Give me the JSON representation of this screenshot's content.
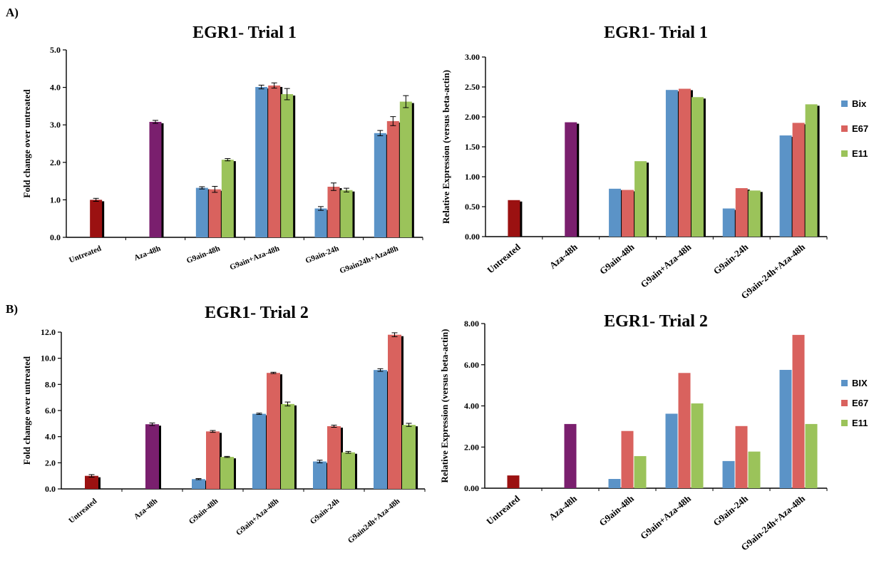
{
  "panels": {
    "a": "A)",
    "b": "B)"
  },
  "categories": [
    "Untreated",
    "Aza-48h",
    "G9ain-48h",
    "G9ain+Aza-48h",
    "G9ain-24h",
    "G9ain24h+Aza48h"
  ],
  "categories_alt": [
    "Untreated",
    "Aza-48h",
    "G9ain-48h",
    "G9ain+Aza-48h",
    "G9ain-24h",
    "G9ain-24h+Aza-48h"
  ],
  "colors": {
    "untreated": "#9b1111",
    "aza": "#7a1f6e",
    "blue": "#5b93c7",
    "red": "#d9625e",
    "green": "#9bc35a"
  },
  "chart_data": [
    {
      "id": "a_left",
      "type": "bar",
      "title": "EGR1- Trial 1",
      "ylabel": "Fold change over untreated",
      "ylim": [
        0,
        5.0
      ],
      "yticks": [
        "0.0",
        "1.0",
        "2.0",
        "3.0",
        "4.0",
        "5.0"
      ],
      "categories": [
        "Untreated",
        "Aza-48h",
        "G9ain-48h",
        "G9ain+Aza-48h",
        "G9ain-24h",
        "G9ain24h+Aza48h"
      ],
      "single": [
        1.0,
        3.08
      ],
      "series": [
        {
          "color": "blue",
          "values": [
            null,
            null,
            1.32,
            4.01,
            0.77,
            2.78
          ],
          "errors": [
            null,
            null,
            0.03,
            0.05,
            0.05,
            0.07
          ]
        },
        {
          "color": "red",
          "values": [
            null,
            null,
            1.28,
            4.05,
            1.35,
            3.1
          ],
          "errors": [
            null,
            null,
            0.08,
            0.07,
            0.1,
            0.12
          ]
        },
        {
          "color": "green",
          "values": [
            null,
            null,
            2.07,
            3.82,
            1.26,
            3.62
          ],
          "errors": [
            null,
            null,
            0.03,
            0.15,
            0.05,
            0.16
          ]
        }
      ],
      "error_bars": true,
      "shadow": true
    },
    {
      "id": "a_right",
      "type": "bar",
      "title": "EGR1- Trial 1",
      "ylabel": "Relative Expression (versus beta-actin)",
      "ylim": [
        0,
        3.0
      ],
      "yticks": [
        "0.00",
        "0.50",
        "1.00",
        "1.50",
        "2.00",
        "2.50",
        "3.00"
      ],
      "categories": [
        "Untreated",
        "Aza-48h",
        "G9ain-48h",
        "G9ain+Aza-48h",
        "G9ain-24h",
        "G9ain-24h+Aza-48h"
      ],
      "single": [
        0.61,
        1.91
      ],
      "legend": [
        "Bix",
        "E67",
        "E11"
      ],
      "series": [
        {
          "name": "Bix",
          "color": "blue",
          "values": [
            null,
            null,
            0.8,
            2.45,
            0.47,
            1.69
          ]
        },
        {
          "name": "E67",
          "color": "red",
          "values": [
            null,
            null,
            0.78,
            2.47,
            0.81,
            1.9
          ]
        },
        {
          "name": "E11",
          "color": "green",
          "values": [
            null,
            null,
            1.26,
            2.33,
            0.77,
            2.21
          ]
        }
      ],
      "error_bars": false,
      "shadow": true
    },
    {
      "id": "b_left",
      "type": "bar",
      "title": "EGR1- Trial 2",
      "ylabel": "Fold change over untreated",
      "ylim": [
        0,
        12.0
      ],
      "yticks": [
        "0.0",
        "2.0",
        "4.0",
        "6.0",
        "8.0",
        "10.0",
        "12.0"
      ],
      "categories": [
        "Untreated",
        "Aza-48h",
        "G9ain-48h",
        "G9ain+Aza-48h",
        "G9ain-24h",
        "G9ain24h+Aza-48h"
      ],
      "single": [
        1.0,
        4.95
      ],
      "series": [
        {
          "color": "blue",
          "values": [
            null,
            null,
            0.75,
            5.75,
            2.1,
            9.1
          ],
          "errors": [
            null,
            null,
            0.04,
            0.05,
            0.1,
            0.1
          ]
        },
        {
          "color": "red",
          "values": [
            null,
            null,
            4.4,
            8.88,
            4.8,
            11.8
          ],
          "errors": [
            null,
            null,
            0.07,
            0.05,
            0.08,
            0.15
          ]
        },
        {
          "color": "green",
          "values": [
            null,
            null,
            2.45,
            6.5,
            2.8,
            4.9
          ],
          "errors": [
            null,
            null,
            0.04,
            0.15,
            0.07,
            0.12
          ]
        }
      ],
      "error_bars": true,
      "shadow": true
    },
    {
      "id": "b_right",
      "type": "bar",
      "title": "EGR1- Trial 2",
      "ylabel": "Relative Expression (versus beta-actin)",
      "ylim": [
        0,
        8.0
      ],
      "yticks": [
        "0.00",
        "2.00",
        "4.00",
        "6.00",
        "8.00"
      ],
      "categories": [
        "Untreated",
        "Aza-48h",
        "G9ain-48h",
        "G9ain+Aza-48h",
        "G9ain-24h",
        "G9ain-24h+Aza-48h"
      ],
      "single": [
        0.62,
        3.12
      ],
      "legend": [
        "BIX",
        "E67",
        "E11"
      ],
      "series": [
        {
          "name": "BIX",
          "color": "blue",
          "values": [
            null,
            null,
            0.45,
            3.62,
            1.32,
            5.75
          ]
        },
        {
          "name": "E67",
          "color": "red",
          "values": [
            null,
            null,
            2.78,
            5.6,
            3.02,
            7.45
          ]
        },
        {
          "name": "E11",
          "color": "green",
          "values": [
            null,
            null,
            1.56,
            4.12,
            1.78,
            3.12
          ]
        }
      ],
      "error_bars": false,
      "shadow": false
    }
  ]
}
